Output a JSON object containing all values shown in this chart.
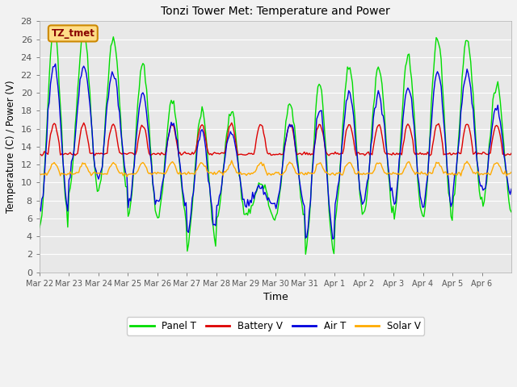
{
  "title": "Tonzi Tower Met: Temperature and Power",
  "xlabel": "Time",
  "ylabel": "Temperature (C) / Power (V)",
  "ylim": [
    0,
    28
  ],
  "yticks": [
    0,
    2,
    4,
    6,
    8,
    10,
    12,
    14,
    16,
    18,
    20,
    22,
    24,
    26,
    28
  ],
  "xtick_labels": [
    "Mar 22",
    "Mar 23",
    "Mar 24",
    "Mar 25",
    "Mar 26",
    "Mar 27",
    "Mar 28",
    "Mar 29",
    "Mar 30",
    "Mar 31",
    "Apr 1",
    "Apr 2",
    "Apr 3",
    "Apr 4",
    "Apr 5",
    "Apr 6"
  ],
  "panel_color": "#00dd00",
  "battery_color": "#dd0000",
  "air_color": "#0000dd",
  "solar_color": "#ffaa00",
  "bg_color": "#e8e8e8",
  "fig_color": "#f2f2f2",
  "annotation_text": "TZ_tmet",
  "annotation_bg": "#ffdd88",
  "annotation_border": "#cc8800",
  "legend_labels": [
    "Panel T",
    "Battery V",
    "Air T",
    "Solar V"
  ]
}
